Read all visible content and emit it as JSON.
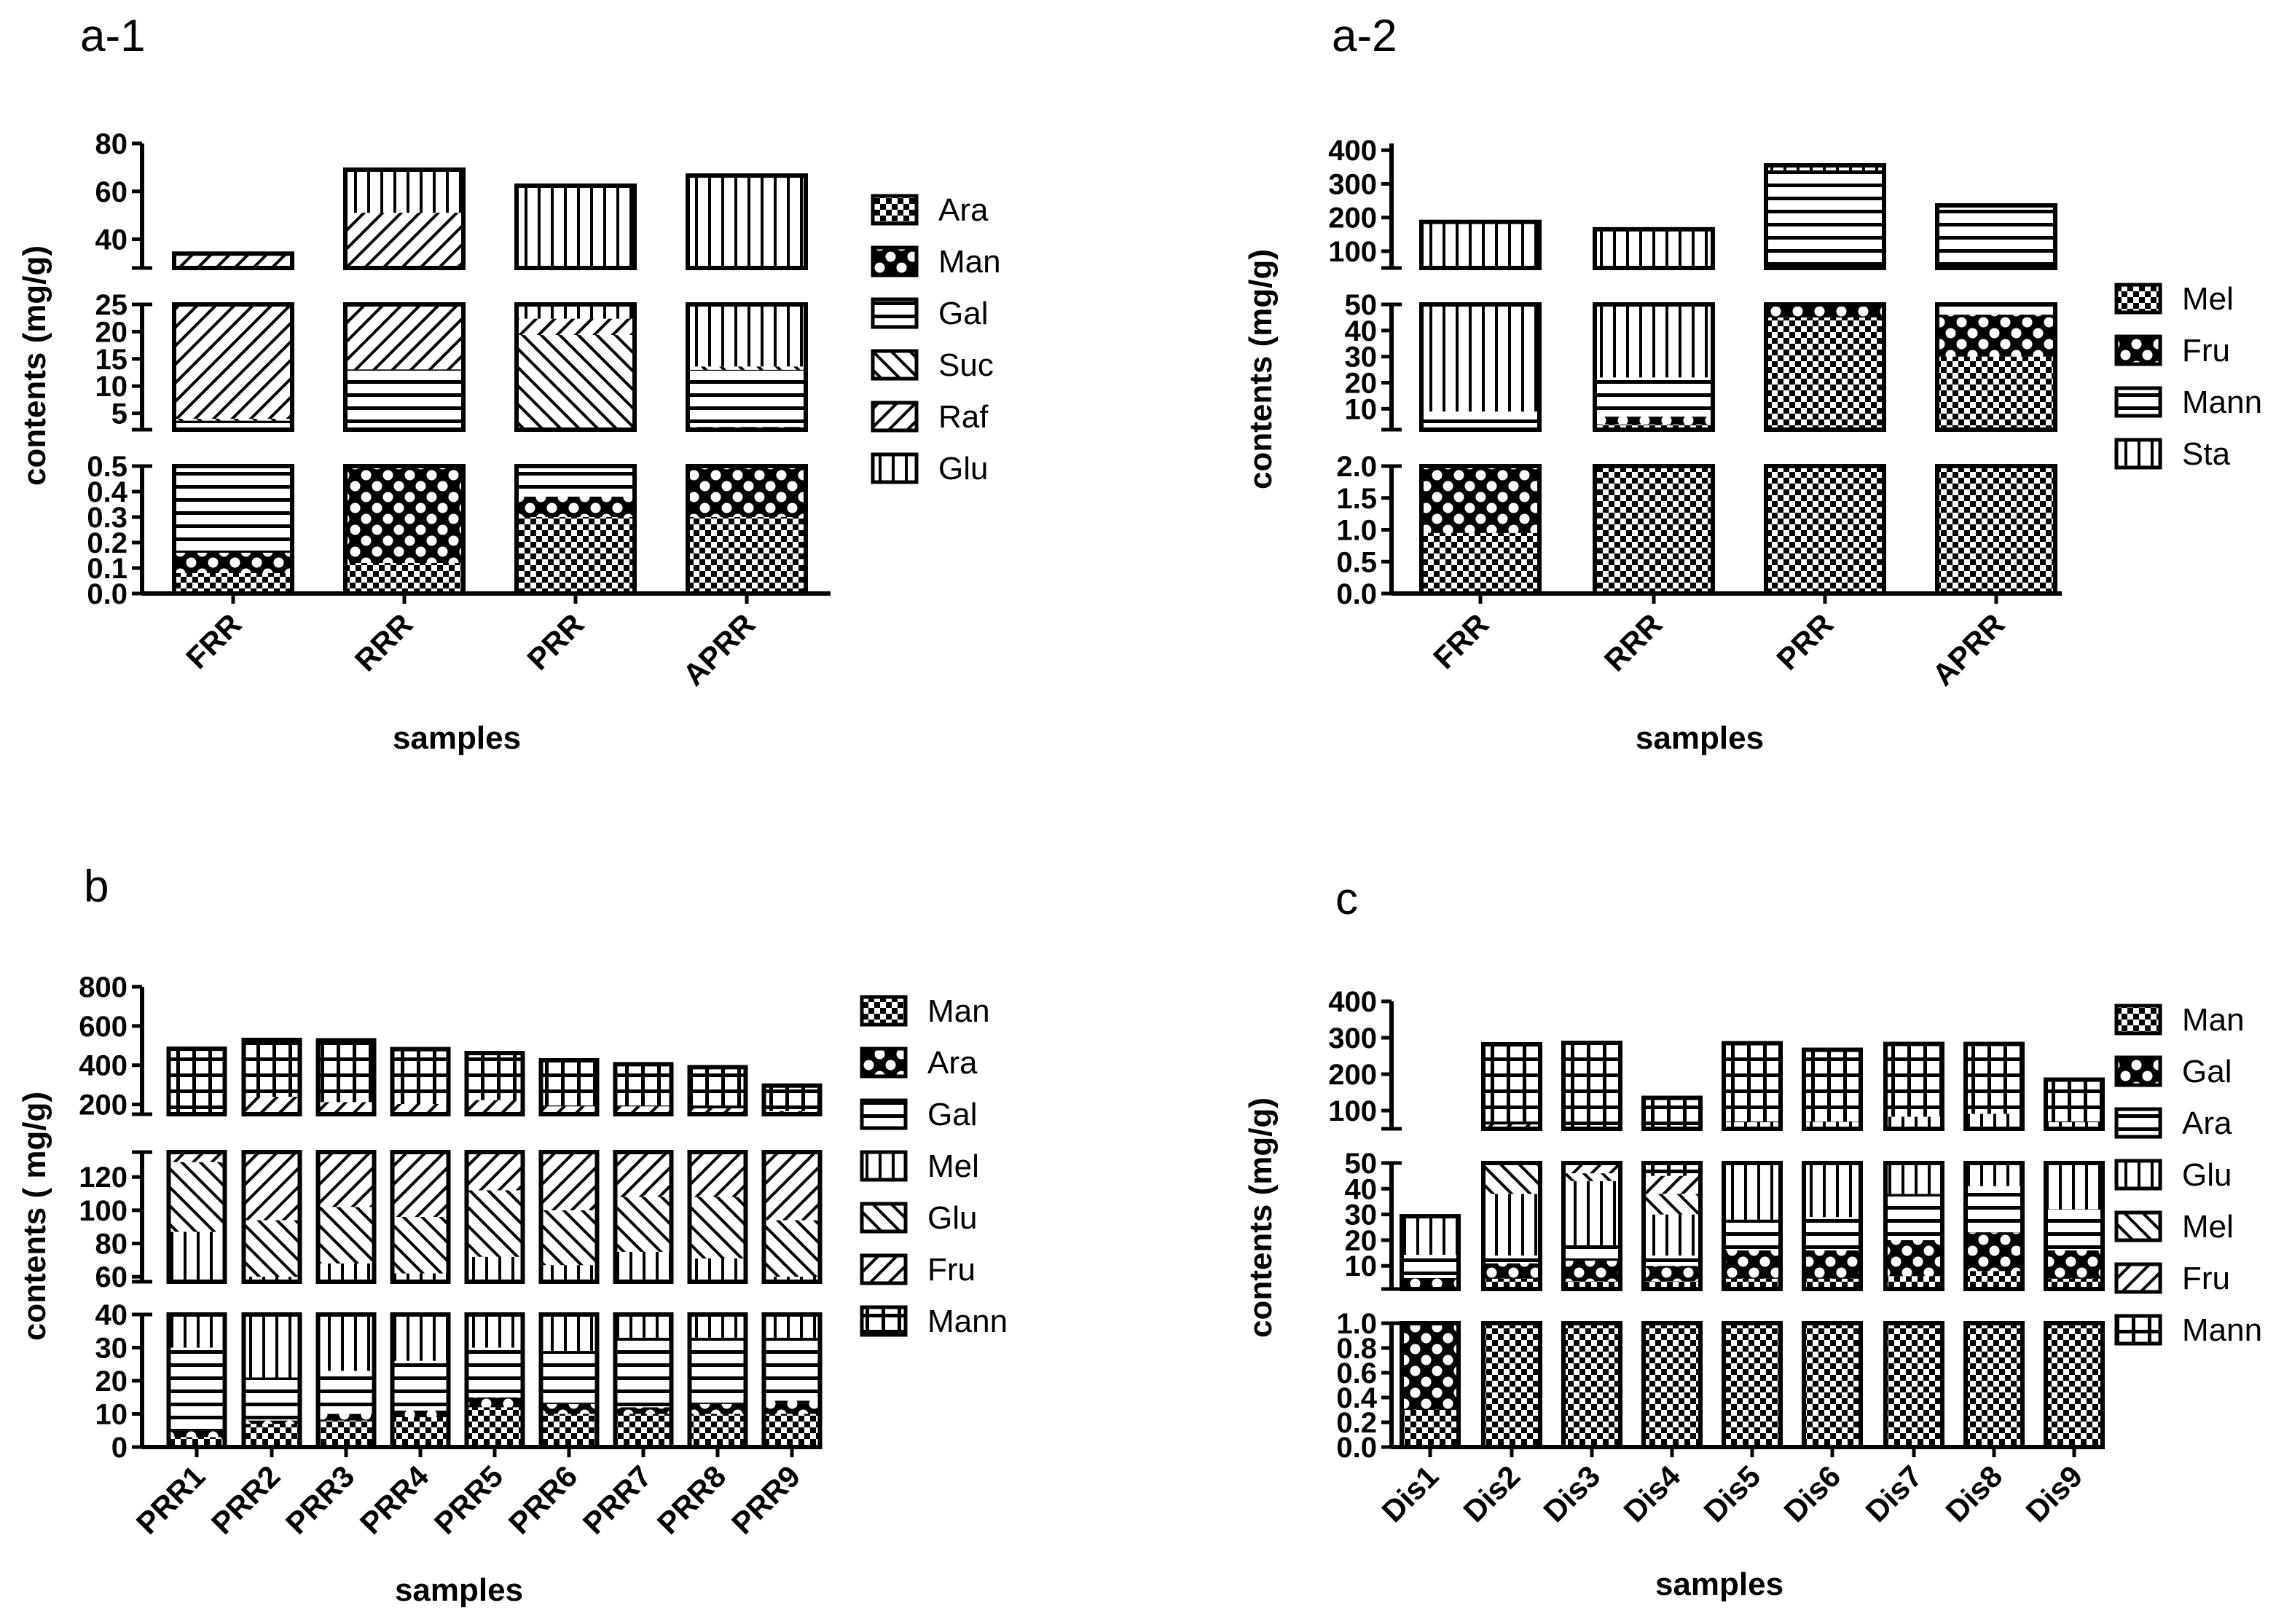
{
  "palette": {
    "ink": "#000000",
    "background": "#ffffff"
  },
  "chart_data": [
    {
      "panel": "a-1",
      "type": "bar",
      "stacked": true,
      "broken_y_axis": true,
      "xlabel": "samples",
      "ylabel": "contents (mg/g)",
      "categories": [
        "FRR",
        "RRR",
        "PRR",
        "APRR"
      ],
      "segments": [
        {
          "range": [
            0,
            0.5
          ],
          "ticks": [
            "0.0",
            "0.1",
            "0.2",
            "0.3",
            "0.4",
            "0.5"
          ]
        },
        {
          "range": [
            2,
            25
          ],
          "ticks": [
            "5",
            "10",
            "15",
            "20",
            "25"
          ]
        },
        {
          "range": [
            28,
            80
          ],
          "ticks": [
            "40",
            "60",
            "80"
          ]
        }
      ],
      "series": [
        {
          "name": "Ara",
          "pattern": "checker",
          "values": [
            0.08,
            0.12,
            0.3,
            0.3
          ]
        },
        {
          "name": "Man",
          "pattern": "quatrefoil",
          "values": [
            0.08,
            0.95,
            0.08,
            2.2
          ]
        },
        {
          "name": "Gal",
          "pattern": "hlines",
          "values": [
            3.5,
            12.0,
            1.5,
            10.5
          ]
        },
        {
          "name": "Suc",
          "pattern": "diag",
          "values": [
            0.35,
            0.0,
            17.5,
            0.6
          ]
        },
        {
          "name": "Raf",
          "pattern": "antidiag",
          "values": [
            30.0,
            38.0,
            3.0,
            0.0
          ]
        },
        {
          "name": "Glu",
          "pattern": "vlines",
          "values": [
            0.0,
            18.0,
            40.0,
            53.0
          ]
        }
      ],
      "totals": [
        34,
        69,
        62,
        67
      ]
    },
    {
      "panel": "a-2",
      "type": "bar",
      "stacked": true,
      "broken_y_axis": true,
      "xlabel": "samples",
      "ylabel": "contents (mg/g)",
      "categories": [
        "FRR",
        "RRR",
        "PRR",
        "APRR"
      ],
      "segments": [
        {
          "range": [
            0,
            2
          ],
          "ticks": [
            "0.0",
            "0.5",
            "1.0",
            "1.5",
            "2.0"
          ]
        },
        {
          "range": [
            2,
            50
          ],
          "ticks": [
            "10",
            "20",
            "30",
            "40",
            "50"
          ]
        },
        {
          "range": [
            50,
            420
          ],
          "ticks": [
            "100",
            "200",
            "300",
            "400"
          ]
        }
      ],
      "series": [
        {
          "name": "Mel",
          "pattern": "checker",
          "values": [
            0.95,
            4.0,
            45.0,
            30.0
          ]
        },
        {
          "name": "Fru",
          "pattern": "quatrefoil",
          "values": [
            1.5,
            3.0,
            5.0,
            16.0
          ]
        },
        {
          "name": "Mann",
          "pattern": "hlines",
          "values": [
            6.5,
            15.0,
            290.0,
            190.0
          ]
        },
        {
          "name": "Sta",
          "pattern": "vlines",
          "values": [
            178.0,
            143.0,
            15.0,
            0.0
          ]
        }
      ],
      "totals": [
        187,
        165,
        355,
        236
      ]
    },
    {
      "panel": "b",
      "type": "bar",
      "stacked": true,
      "broken_y_axis": true,
      "xlabel": "samples",
      "ylabel": "contents ( mg/g)",
      "categories": [
        "PRR1",
        "PRR2",
        "PRR3",
        "PRR4",
        "PRR5",
        "PRR6",
        "PRR7",
        "PRR8",
        "PRR9"
      ],
      "segments": [
        {
          "range": [
            0,
            40
          ],
          "ticks": [
            "0",
            "10",
            "20",
            "30",
            "40"
          ]
        },
        {
          "range": [
            57,
            135
          ],
          "ticks": [
            "60",
            "80",
            "100",
            "120"
          ]
        },
        {
          "range": [
            150,
            800
          ],
          "ticks": [
            "200",
            "400",
            "600",
            "800"
          ]
        }
      ],
      "series": [
        {
          "name": "Man",
          "pattern": "checker",
          "values": [
            3,
            7,
            8,
            9,
            12,
            10,
            10,
            10,
            10
          ]
        },
        {
          "name": "Ara",
          "pattern": "quatrefoil",
          "values": [
            2,
            1,
            2,
            2,
            3,
            3,
            2,
            3,
            4
          ]
        },
        {
          "name": "Gal",
          "pattern": "hlines",
          "values": [
            25,
            13,
            13,
            15,
            15,
            16,
            21,
            20,
            19
          ]
        },
        {
          "name": "Mel",
          "pattern": "vlines",
          "values": [
            57,
            39,
            45,
            36,
            42,
            38,
            42,
            38,
            27
          ]
        },
        {
          "name": "Glu",
          "pattern": "diag",
          "values": [
            42,
            34,
            34,
            34,
            40,
            33,
            33,
            37,
            34
          ]
        },
        {
          "name": "Fru",
          "pattern": "antidiag",
          "values": [
            30,
            145,
            110,
            106,
            110,
            90,
            82,
            72,
            72
          ]
        },
        {
          "name": "Mann",
          "pattern": "grid",
          "values": [
            325,
            290,
            315,
            280,
            240,
            235,
            215,
            210,
            130
          ]
        }
      ],
      "totals": [
        484,
        529,
        527,
        482,
        462,
        425,
        405,
        390,
        296
      ]
    },
    {
      "panel": "c",
      "type": "bar",
      "stacked": true,
      "broken_y_axis": true,
      "xlabel": "samples",
      "ylabel": "contents (mg/g)",
      "categories": [
        "Dis1",
        "Dis2",
        "Dis3",
        "Dis4",
        "Dis5",
        "Dis6",
        "Dis7",
        "Dis8",
        "Dis9"
      ],
      "segments": [
        {
          "range": [
            0,
            1
          ],
          "ticks": [
            "0.0",
            "0.2",
            "0.4",
            "0.6",
            "0.8",
            "1.0"
          ]
        },
        {
          "range": [
            1,
            50
          ],
          "ticks": [
            "10",
            "20",
            "30",
            "40",
            "50"
          ]
        },
        {
          "range": [
            50,
            400
          ],
          "ticks": [
            "100",
            "200",
            "300",
            "400"
          ]
        }
      ],
      "series": [
        {
          "name": "Man",
          "pattern": "checker",
          "values": [
            0.3,
            5,
            4,
            4,
            5,
            5,
            6,
            8,
            5
          ]
        },
        {
          "name": "Gal",
          "pattern": "quatrefoil",
          "values": [
            5,
            6,
            8,
            6,
            11,
            11,
            14,
            15,
            11
          ]
        },
        {
          "name": "Ara",
          "pattern": "hlines",
          "values": [
            9,
            3,
            6,
            4,
            12,
            13,
            18,
            18,
            16
          ]
        },
        {
          "name": "Glu",
          "pattern": "vlines",
          "values": [
            15,
            24,
            25,
            16,
            40,
            40,
            45,
            50,
            36
          ]
        },
        {
          "name": "Mel",
          "pattern": "diag",
          "values": [
            0,
            12,
            3,
            8,
            0,
            0,
            0,
            0,
            0
          ]
        },
        {
          "name": "Fru",
          "pattern": "antidiag",
          "values": [
            0,
            12,
            10,
            7,
            0,
            0,
            0,
            0,
            0
          ]
        },
        {
          "name": "Mann",
          "pattern": "grid",
          "values": [
            0,
            220,
            230,
            90,
            217,
            198,
            200,
            192,
            117
          ]
        }
      ],
      "totals": [
        30,
        282,
        286,
        135,
        285,
        267,
        283,
        283,
        185
      ]
    }
  ],
  "panels": [
    {
      "label": "a-1"
    },
    {
      "label": "a-2"
    },
    {
      "label": "b"
    },
    {
      "label": "c"
    }
  ]
}
